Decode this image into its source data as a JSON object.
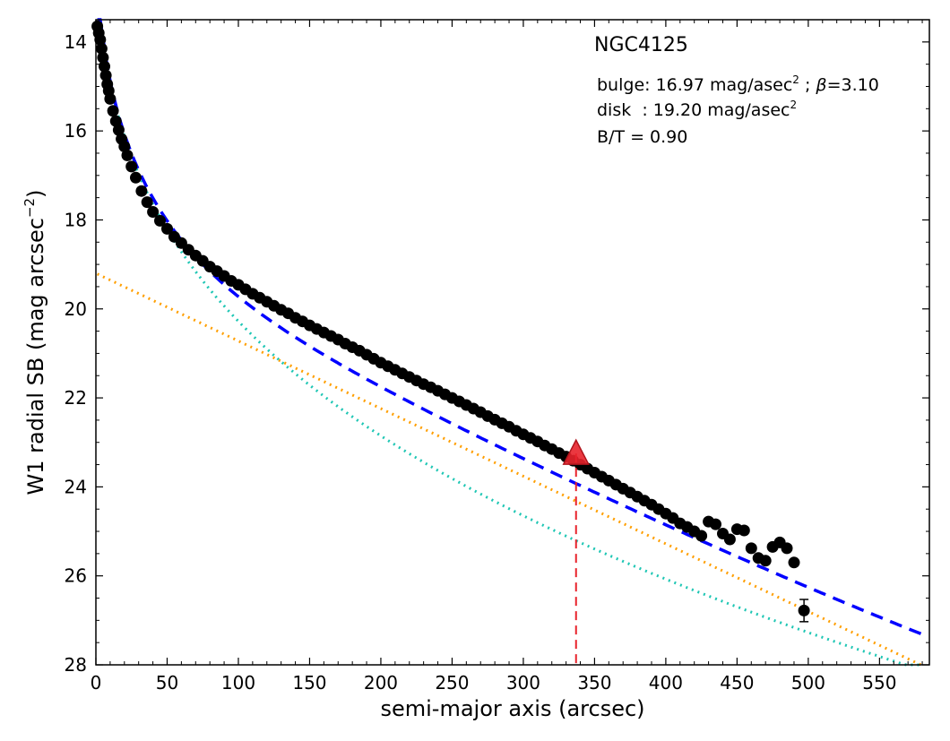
{
  "chart_data": {
    "type": "scatter",
    "title": "NGC4125",
    "xlabel": "semi-major axis (arcsec)",
    "ylabel": "W1 radial SB (mag arcsec",
    "ylabel_sup": "−2",
    "ylabel_close": ")",
    "xlim": [
      0,
      585
    ],
    "ylim": [
      28,
      13.5
    ],
    "y_inverted": true,
    "xticks": [
      0,
      50,
      100,
      150,
      200,
      250,
      300,
      350,
      400,
      450,
      500,
      550
    ],
    "yticks": [
      14,
      16,
      18,
      20,
      22,
      24,
      26,
      28
    ],
    "annotations": {
      "bulge": {
        "prefix": "bulge: 16.97 mag/asec",
        "sup": "2",
        "middle": " ; ",
        "greek": "β",
        "suffix": "=3.10"
      },
      "disk": {
        "prefix": "disk  : 19.20 mag/asec",
        "sup": "2"
      },
      "bt": "B/T = 0.90"
    },
    "marker": {
      "x": 337,
      "y": 23.25,
      "color": "#e8222b"
    },
    "bulge_params": {
      "mu_e": 16.97,
      "beta": 3.1,
      "r_e": 30
    },
    "disk_params": {
      "mu_0": 19.2,
      "h": 70
    },
    "observed": [
      [
        1,
        13.65
      ],
      [
        2,
        13.8
      ],
      [
        3,
        13.95
      ],
      [
        4,
        14.15
      ],
      [
        5,
        14.35
      ],
      [
        6,
        14.55
      ],
      [
        7,
        14.75
      ],
      [
        8,
        14.95
      ],
      [
        9,
        15.1
      ],
      [
        10,
        15.28
      ],
      [
        12,
        15.55
      ],
      [
        14,
        15.78
      ],
      [
        16,
        15.98
      ],
      [
        18,
        16.18
      ],
      [
        20,
        16.35
      ],
      [
        22,
        16.55
      ],
      [
        25,
        16.8
      ],
      [
        28,
        17.05
      ],
      [
        32,
        17.35
      ],
      [
        36,
        17.6
      ],
      [
        40,
        17.82
      ],
      [
        45,
        18.02
      ],
      [
        50,
        18.2
      ],
      [
        55,
        18.38
      ],
      [
        60,
        18.52
      ],
      [
        65,
        18.67
      ],
      [
        70,
        18.8
      ],
      [
        75,
        18.92
      ],
      [
        80,
        19.05
      ],
      [
        85,
        19.15
      ],
      [
        90,
        19.26
      ],
      [
        95,
        19.37
      ],
      [
        100,
        19.46
      ],
      [
        105,
        19.56
      ],
      [
        110,
        19.66
      ],
      [
        115,
        19.75
      ],
      [
        120,
        19.84
      ],
      [
        125,
        19.93
      ],
      [
        130,
        20.02
      ],
      [
        135,
        20.1
      ],
      [
        140,
        20.2
      ],
      [
        145,
        20.28
      ],
      [
        150,
        20.37
      ],
      [
        155,
        20.45
      ],
      [
        160,
        20.53
      ],
      [
        165,
        20.61
      ],
      [
        170,
        20.69
      ],
      [
        175,
        20.78
      ],
      [
        180,
        20.86
      ],
      [
        185,
        20.94
      ],
      [
        190,
        21.03
      ],
      [
        195,
        21.12
      ],
      [
        200,
        21.21
      ],
      [
        205,
        21.29
      ],
      [
        210,
        21.37
      ],
      [
        215,
        21.45
      ],
      [
        220,
        21.53
      ],
      [
        225,
        21.61
      ],
      [
        230,
        21.69
      ],
      [
        235,
        21.76
      ],
      [
        240,
        21.84
      ],
      [
        245,
        21.92
      ],
      [
        250,
        22.0
      ],
      [
        255,
        22.08
      ],
      [
        260,
        22.16
      ],
      [
        265,
        22.24
      ],
      [
        270,
        22.32
      ],
      [
        275,
        22.41
      ],
      [
        280,
        22.49
      ],
      [
        285,
        22.57
      ],
      [
        290,
        22.65
      ],
      [
        295,
        22.74
      ],
      [
        300,
        22.82
      ],
      [
        305,
        22.9
      ],
      [
        310,
        22.98
      ],
      [
        315,
        23.07
      ],
      [
        320,
        23.15
      ],
      [
        325,
        23.24
      ],
      [
        330,
        23.32
      ],
      [
        335,
        23.41
      ],
      [
        340,
        23.5
      ],
      [
        345,
        23.59
      ],
      [
        350,
        23.68
      ],
      [
        355,
        23.77
      ],
      [
        360,
        23.86
      ],
      [
        365,
        23.95
      ],
      [
        370,
        24.04
      ],
      [
        375,
        24.13
      ],
      [
        380,
        24.22
      ],
      [
        385,
        24.31
      ],
      [
        390,
        24.4
      ],
      [
        395,
        24.5
      ],
      [
        400,
        24.6
      ],
      [
        405,
        24.7
      ],
      [
        410,
        24.82
      ],
      [
        415,
        24.9
      ],
      [
        420,
        25.0
      ],
      [
        425,
        25.1
      ],
      [
        430,
        24.78
      ],
      [
        435,
        24.84
      ],
      [
        440,
        25.05
      ],
      [
        445,
        25.18
      ],
      [
        450,
        24.95
      ],
      [
        455,
        24.98
      ],
      [
        460,
        25.38
      ],
      [
        465,
        25.6
      ],
      [
        470,
        25.66
      ],
      [
        475,
        25.35
      ],
      [
        480,
        25.25
      ],
      [
        485,
        25.38
      ],
      [
        490,
        25.7
      ],
      [
        497,
        26.78
      ]
    ],
    "error_bar": {
      "x": 497,
      "y": 26.78,
      "err": 0.25
    }
  }
}
